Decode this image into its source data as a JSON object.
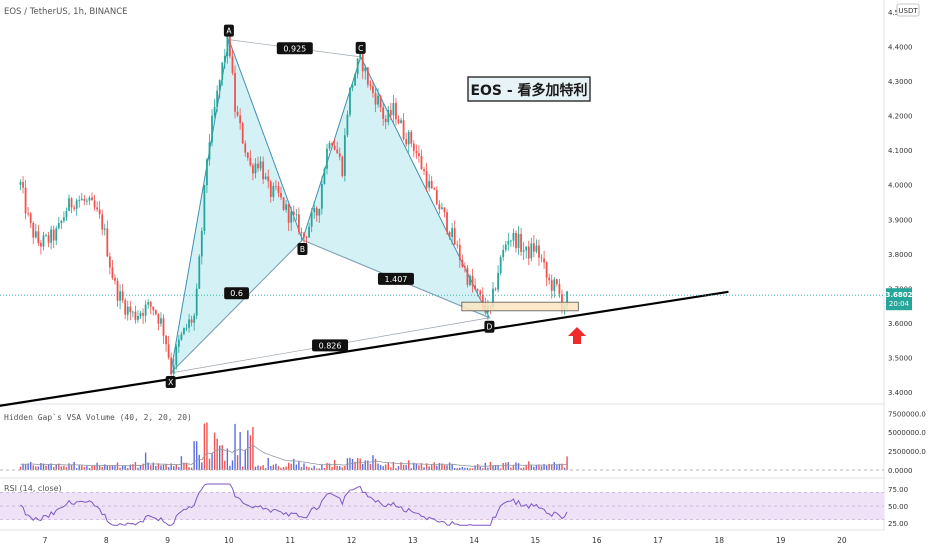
{
  "header": {
    "symbol_title": "EOS / TetherUS, 1h, BINANCE",
    "currency_badge": "USDT"
  },
  "annotation": {
    "title": "EOS - 看多加特利"
  },
  "price_tag": {
    "price": "3.6802",
    "countdown": "20:04"
  },
  "indicators": {
    "volume_title": "Hidden Gap`s VSA Volume (40, 2, 20, 20)",
    "rsi_title": "RSI (14, close)"
  },
  "colors": {
    "bull": "#26a69a",
    "bear": "#ef5350",
    "harmonic_fill": "#cdeef5",
    "harmonic_line": "#3f8fb3",
    "trendline": "#000000",
    "zone_fill": "#fbe5c0",
    "arrow": "#f02a2a",
    "price_line": "#26a69a",
    "rsi_band": "#efe2f7",
    "rsi_line": "#7e57c2",
    "vol_blue": "#5b6ee1",
    "vol_red": "#ef5350"
  },
  "chart_data": [
    {
      "type": "candlestick",
      "x_ticks": [
        "7",
        "8",
        "9",
        "10",
        "11",
        "12",
        "13",
        "14",
        "15",
        "16",
        "17",
        "18",
        "19",
        "20"
      ],
      "y_ticks": [
        "4.5000",
        "4.4000",
        "4.3000",
        "4.2000",
        "4.1000",
        "4.0000",
        "3.9000",
        "3.8000",
        "3.7000",
        "3.6000",
        "3.5000",
        "3.4000"
      ],
      "ylim": [
        3.37,
        4.53
      ],
      "current_price": 3.6802,
      "close_path": [
        [
          6.6,
          4.0
        ],
        [
          6.75,
          3.88
        ],
        [
          6.9,
          3.83
        ],
        [
          7.05,
          3.84
        ],
        [
          7.2,
          3.86
        ],
        [
          7.35,
          3.93
        ],
        [
          7.5,
          3.96
        ],
        [
          7.65,
          3.95
        ],
        [
          7.8,
          3.93
        ],
        [
          7.95,
          3.88
        ],
        [
          8.05,
          3.78
        ],
        [
          8.15,
          3.7
        ],
        [
          8.3,
          3.65
        ],
        [
          8.45,
          3.62
        ],
        [
          8.6,
          3.64
        ],
        [
          8.75,
          3.65
        ],
        [
          8.9,
          3.6
        ],
        [
          9.0,
          3.53
        ],
        [
          9.05,
          3.46
        ],
        [
          9.2,
          3.55
        ],
        [
          9.35,
          3.6
        ],
        [
          9.45,
          3.62
        ],
        [
          9.55,
          3.85
        ],
        [
          9.65,
          4.1
        ],
        [
          9.75,
          4.2
        ],
        [
          9.85,
          4.3
        ],
        [
          9.95,
          4.4
        ],
        [
          10.0,
          4.42
        ],
        [
          10.1,
          4.22
        ],
        [
          10.2,
          4.15
        ],
        [
          10.35,
          4.05
        ],
        [
          10.5,
          4.07
        ],
        [
          10.65,
          3.98
        ],
        [
          10.8,
          3.97
        ],
        [
          10.95,
          3.92
        ],
        [
          11.05,
          3.9
        ],
        [
          11.15,
          3.88
        ],
        [
          11.2,
          3.84
        ],
        [
          11.35,
          3.9
        ],
        [
          11.45,
          3.92
        ],
        [
          11.55,
          4.05
        ],
        [
          11.65,
          4.15
        ],
        [
          11.75,
          4.1
        ],
        [
          11.85,
          4.05
        ],
        [
          11.95,
          4.25
        ],
        [
          12.05,
          4.32
        ],
        [
          12.15,
          4.37
        ],
        [
          12.3,
          4.28
        ],
        [
          12.45,
          4.24
        ],
        [
          12.55,
          4.18
        ],
        [
          12.7,
          4.22
        ],
        [
          12.85,
          4.15
        ],
        [
          13.0,
          4.12
        ],
        [
          13.15,
          4.05
        ],
        [
          13.3,
          3.98
        ],
        [
          13.45,
          3.93
        ],
        [
          13.6,
          3.87
        ],
        [
          13.75,
          3.8
        ],
        [
          13.9,
          3.73
        ],
        [
          14.05,
          3.68
        ],
        [
          14.2,
          3.64
        ],
        [
          14.25,
          3.62
        ],
        [
          14.4,
          3.76
        ],
        [
          14.55,
          3.85
        ],
        [
          14.7,
          3.84
        ],
        [
          14.85,
          3.8
        ],
        [
          15.0,
          3.82
        ],
        [
          15.1,
          3.78
        ],
        [
          15.2,
          3.72
        ],
        [
          15.35,
          3.7
        ],
        [
          15.45,
          3.65
        ],
        [
          15.55,
          3.68
        ]
      ]
    },
    {
      "type": "harmonic_pattern",
      "points": [
        {
          "name": "X",
          "date": 9.05,
          "price": 3.455
        },
        {
          "name": "A",
          "date": 10.0,
          "price": 4.42
        },
        {
          "name": "B",
          "date": 11.2,
          "price": 3.84
        },
        {
          "name": "C",
          "date": 12.15,
          "price": 4.37
        },
        {
          "name": "D",
          "date": 14.25,
          "price": 3.615
        }
      ],
      "ratios": [
        {
          "label": "0.925",
          "between": "A-C"
        },
        {
          "label": "0.6",
          "between": "X-B"
        },
        {
          "label": "1.407",
          "between": "B-D"
        },
        {
          "label": "0.826",
          "between": "X-D"
        }
      ],
      "trendline": [
        [
          5.9,
          3.35
        ],
        [
          18.15,
          3.69
        ]
      ],
      "support_zone": {
        "from": 13.8,
        "to": 15.7,
        "low": 3.635,
        "high": 3.66
      }
    },
    {
      "type": "bar",
      "title": "Hidden Gap`s VSA Volume (40, 2, 20, 20)",
      "y_ticks": [
        "7500000.0",
        "5000000.0",
        "2500000.0",
        "0.0000"
      ],
      "ylim": [
        0,
        8200000
      ]
    },
    {
      "type": "line",
      "title": "RSI (14, close)",
      "y_ticks": [
        "75.00",
        "50.00",
        "25.00"
      ],
      "ylim": [
        18,
        85
      ],
      "band": [
        30,
        70
      ]
    }
  ]
}
